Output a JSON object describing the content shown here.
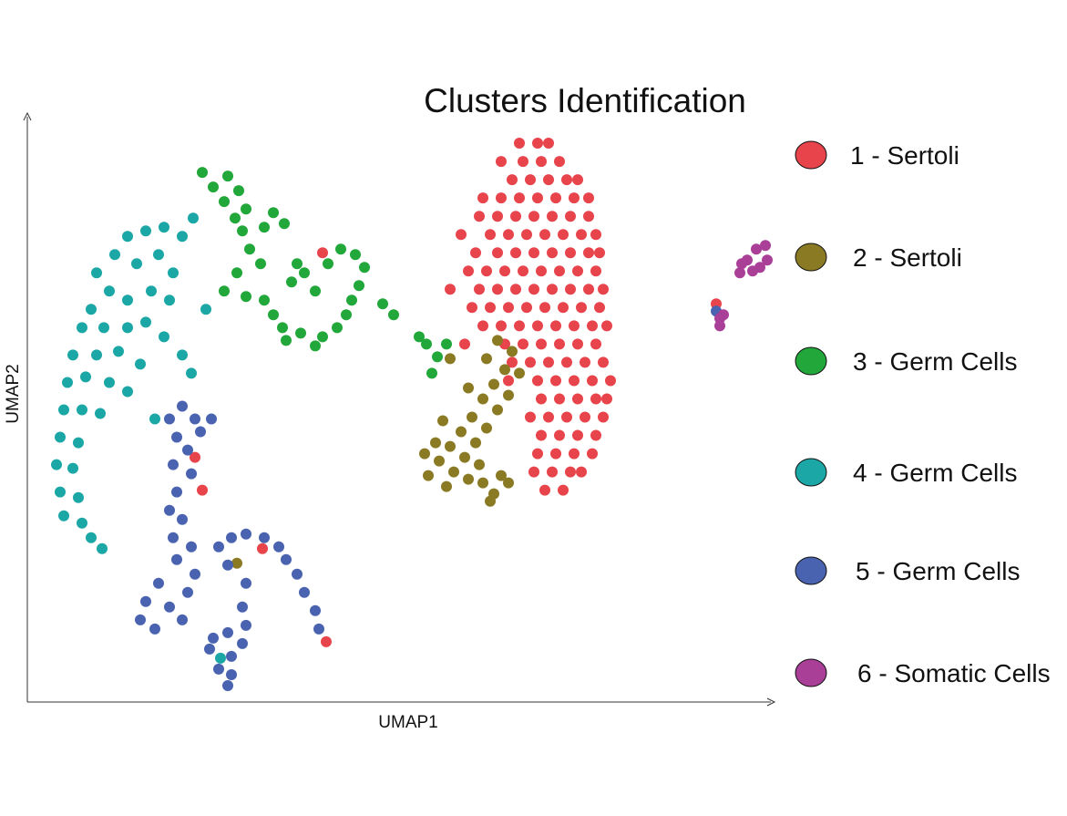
{
  "chart_data": {
    "type": "scatter",
    "title": "Clusters Identification",
    "xlabel": "UMAP1",
    "ylabel": "UMAP2",
    "xlim": [
      -10,
      10.4
    ],
    "ylim": [
      -8,
      8.1
    ],
    "grid": false,
    "legend_placement": "right",
    "series": [
      {
        "name": "1 - Sertoli",
        "color": "#e8444b",
        "points": [
          [
            3.5,
            7.3
          ],
          [
            4.0,
            7.3
          ],
          [
            4.3,
            7.3
          ],
          [
            3.0,
            6.8
          ],
          [
            3.6,
            6.8
          ],
          [
            4.1,
            6.8
          ],
          [
            4.6,
            6.8
          ],
          [
            3.3,
            6.3
          ],
          [
            3.8,
            6.3
          ],
          [
            4.3,
            6.3
          ],
          [
            4.8,
            6.3
          ],
          [
            5.1,
            6.3
          ],
          [
            2.5,
            5.8
          ],
          [
            3.0,
            5.8
          ],
          [
            3.5,
            5.8
          ],
          [
            4.0,
            5.8
          ],
          [
            4.5,
            5.8
          ],
          [
            5.0,
            5.8
          ],
          [
            5.4,
            5.8
          ],
          [
            2.4,
            5.3
          ],
          [
            2.9,
            5.3
          ],
          [
            3.4,
            5.3
          ],
          [
            3.9,
            5.3
          ],
          [
            4.4,
            5.3
          ],
          [
            4.9,
            5.3
          ],
          [
            5.4,
            5.3
          ],
          [
            1.9,
            4.8
          ],
          [
            2.7,
            4.8
          ],
          [
            3.2,
            4.8
          ],
          [
            3.7,
            4.8
          ],
          [
            4.2,
            4.8
          ],
          [
            4.7,
            4.8
          ],
          [
            5.2,
            4.8
          ],
          [
            5.6,
            4.8
          ],
          [
            2.3,
            4.3
          ],
          [
            2.9,
            4.3
          ],
          [
            3.4,
            4.3
          ],
          [
            3.9,
            4.3
          ],
          [
            4.4,
            4.3
          ],
          [
            4.9,
            4.3
          ],
          [
            5.4,
            4.3
          ],
          [
            5.7,
            4.3
          ],
          [
            2.1,
            3.8
          ],
          [
            2.6,
            3.8
          ],
          [
            3.1,
            3.8
          ],
          [
            3.6,
            3.8
          ],
          [
            4.1,
            3.8
          ],
          [
            4.6,
            3.8
          ],
          [
            5.1,
            3.8
          ],
          [
            5.6,
            3.8
          ],
          [
            1.6,
            3.3
          ],
          [
            2.4,
            3.3
          ],
          [
            2.9,
            3.3
          ],
          [
            3.4,
            3.3
          ],
          [
            3.9,
            3.3
          ],
          [
            4.4,
            3.3
          ],
          [
            4.9,
            3.3
          ],
          [
            5.4,
            3.3
          ],
          [
            5.8,
            3.3
          ],
          [
            2.2,
            2.8
          ],
          [
            2.7,
            2.8
          ],
          [
            3.2,
            2.8
          ],
          [
            3.7,
            2.8
          ],
          [
            4.2,
            2.8
          ],
          [
            4.7,
            2.8
          ],
          [
            5.2,
            2.8
          ],
          [
            5.7,
            2.8
          ],
          [
            2.5,
            2.3
          ],
          [
            3.0,
            2.3
          ],
          [
            3.5,
            2.3
          ],
          [
            4.0,
            2.3
          ],
          [
            4.5,
            2.3
          ],
          [
            5.0,
            2.3
          ],
          [
            5.5,
            2.3
          ],
          [
            5.9,
            2.3
          ],
          [
            2.0,
            1.8
          ],
          [
            3.1,
            1.8
          ],
          [
            3.6,
            1.8
          ],
          [
            4.1,
            1.8
          ],
          [
            4.6,
            1.8
          ],
          [
            5.1,
            1.8
          ],
          [
            5.6,
            1.8
          ],
          [
            3.3,
            1.3
          ],
          [
            3.8,
            1.3
          ],
          [
            4.3,
            1.3
          ],
          [
            4.8,
            1.3
          ],
          [
            5.3,
            1.3
          ],
          [
            5.8,
            1.3
          ],
          [
            3.2,
            0.8
          ],
          [
            4.0,
            0.8
          ],
          [
            4.5,
            0.8
          ],
          [
            5.0,
            0.8
          ],
          [
            5.5,
            0.8
          ],
          [
            6.0,
            0.8
          ],
          [
            4.1,
            0.3
          ],
          [
            4.6,
            0.3
          ],
          [
            5.1,
            0.3
          ],
          [
            5.6,
            0.3
          ],
          [
            5.9,
            0.3
          ],
          [
            3.8,
            -0.2
          ],
          [
            4.3,
            -0.2
          ],
          [
            4.8,
            -0.2
          ],
          [
            5.3,
            -0.2
          ],
          [
            5.8,
            -0.2
          ],
          [
            4.1,
            -0.7
          ],
          [
            4.6,
            -0.7
          ],
          [
            5.1,
            -0.7
          ],
          [
            5.6,
            -0.7
          ],
          [
            4.0,
            -1.2
          ],
          [
            4.5,
            -1.2
          ],
          [
            5.0,
            -1.2
          ],
          [
            5.5,
            -1.2
          ],
          [
            3.9,
            -1.7
          ],
          [
            4.4,
            -1.7
          ],
          [
            4.9,
            -1.7
          ],
          [
            5.2,
            -1.7
          ],
          [
            4.2,
            -2.2
          ],
          [
            4.7,
            -2.2
          ],
          [
            8.9,
            2.9
          ],
          [
            -1.9,
            4.3
          ],
          [
            -5.4,
            -1.3
          ],
          [
            -5.2,
            -2.2
          ],
          [
            -3.55,
            -3.8
          ],
          [
            -1.8,
            -6.35
          ]
        ]
      },
      {
        "name": "2 - Sertoli",
        "color": "#8b7a24",
        "points": [
          [
            2.9,
            1.9
          ],
          [
            3.3,
            1.6
          ],
          [
            2.6,
            1.4
          ],
          [
            3.1,
            1.1
          ],
          [
            3.5,
            1.0
          ],
          [
            2.8,
            0.7
          ],
          [
            3.2,
            0.4
          ],
          [
            2.5,
            0.3
          ],
          [
            2.9,
            0.0
          ],
          [
            2.2,
            -0.2
          ],
          [
            2.6,
            -0.5
          ],
          [
            1.9,
            -0.6
          ],
          [
            2.3,
            -0.9
          ],
          [
            1.6,
            -1.0
          ],
          [
            2.0,
            -1.3
          ],
          [
            1.3,
            -1.4
          ],
          [
            1.7,
            -1.7
          ],
          [
            2.1,
            -1.9
          ],
          [
            2.5,
            -2.0
          ],
          [
            2.8,
            -2.3
          ],
          [
            1.5,
            -2.1
          ],
          [
            2.4,
            -1.5
          ],
          [
            1.2,
            -0.9
          ],
          [
            1.0,
            -1.8
          ],
          [
            0.9,
            -1.2
          ],
          [
            3.0,
            -1.8
          ],
          [
            3.2,
            -2.0
          ],
          [
            2.7,
            -2.5
          ],
          [
            1.4,
            -0.3
          ],
          [
            2.1,
            0.6
          ],
          [
            1.6,
            1.4
          ],
          [
            -4.25,
            -4.2
          ]
        ]
      },
      {
        "name": "3 - Germ Cells",
        "color": "#22a73a",
        "points": [
          [
            -5.2,
            6.5
          ],
          [
            -4.9,
            6.1
          ],
          [
            -4.5,
            6.4
          ],
          [
            -4.2,
            6.0
          ],
          [
            -4.6,
            5.7
          ],
          [
            -4.0,
            5.5
          ],
          [
            -3.25,
            5.4
          ],
          [
            -2.95,
            5.1
          ],
          [
            -3.5,
            5.0
          ],
          [
            -4.1,
            4.9
          ],
          [
            -3.9,
            4.4
          ],
          [
            -3.6,
            4.0
          ],
          [
            -4.25,
            3.75
          ],
          [
            -4.6,
            3.25
          ],
          [
            -4.0,
            3.1
          ],
          [
            -3.5,
            3.0
          ],
          [
            -3.25,
            2.6
          ],
          [
            -3.0,
            2.25
          ],
          [
            -2.9,
            1.9
          ],
          [
            -2.5,
            2.1
          ],
          [
            -2.1,
            1.75
          ],
          [
            -1.9,
            2.0
          ],
          [
            -1.5,
            2.25
          ],
          [
            -1.25,
            2.6
          ],
          [
            -1.1,
            3.0
          ],
          [
            -0.9,
            3.4
          ],
          [
            -0.75,
            3.9
          ],
          [
            -1.0,
            4.25
          ],
          [
            -1.4,
            4.4
          ],
          [
            -1.75,
            4.0
          ],
          [
            -2.4,
            3.75
          ],
          [
            -2.75,
            3.5
          ],
          [
            -2.1,
            3.25
          ],
          [
            -2.6,
            4.0
          ],
          [
            -0.25,
            2.9
          ],
          [
            0.05,
            2.6
          ],
          [
            0.75,
            2.0
          ],
          [
            0.95,
            1.8
          ],
          [
            1.25,
            1.45
          ],
          [
            1.1,
            1.0
          ],
          [
            1.5,
            1.8
          ],
          [
            -4.3,
            5.25
          ]
        ]
      },
      {
        "name": "4 - Germ Cells",
        "color": "#1ba7a5",
        "points": [
          [
            -5.45,
            5.25
          ],
          [
            -5.75,
            4.75
          ],
          [
            -6.25,
            5.0
          ],
          [
            -6.75,
            4.9
          ],
          [
            -7.25,
            4.75
          ],
          [
            -7.6,
            4.25
          ],
          [
            -8.1,
            3.75
          ],
          [
            -7.0,
            4.0
          ],
          [
            -6.4,
            4.25
          ],
          [
            -6.0,
            3.75
          ],
          [
            -7.75,
            3.25
          ],
          [
            -7.25,
            3.0
          ],
          [
            -6.6,
            3.25
          ],
          [
            -6.1,
            3.0
          ],
          [
            -8.25,
            2.75
          ],
          [
            -8.5,
            2.25
          ],
          [
            -7.9,
            2.25
          ],
          [
            -7.25,
            2.25
          ],
          [
            -6.75,
            2.4
          ],
          [
            -6.25,
            2.0
          ],
          [
            -5.75,
            1.5
          ],
          [
            -8.75,
            1.5
          ],
          [
            -8.1,
            1.5
          ],
          [
            -7.5,
            1.6
          ],
          [
            -6.9,
            1.25
          ],
          [
            -8.9,
            0.75
          ],
          [
            -8.4,
            0.9
          ],
          [
            -7.75,
            0.75
          ],
          [
            -7.25,
            0.5
          ],
          [
            -9.0,
            0.0
          ],
          [
            -8.5,
            0.0
          ],
          [
            -8.0,
            -0.1
          ],
          [
            -9.1,
            -0.75
          ],
          [
            -8.6,
            -0.9
          ],
          [
            -9.2,
            -1.5
          ],
          [
            -8.75,
            -1.6
          ],
          [
            -9.1,
            -2.25
          ],
          [
            -8.6,
            -2.4
          ],
          [
            -9.0,
            -2.9
          ],
          [
            -8.5,
            -3.1
          ],
          [
            -8.25,
            -3.5
          ],
          [
            -7.95,
            -3.8
          ],
          [
            -5.1,
            2.75
          ],
          [
            -5.5,
            1.0
          ],
          [
            -6.5,
            -0.25
          ],
          [
            -4.7,
            -6.8
          ]
        ]
      },
      {
        "name": "5 - Germ Cells",
        "color": "#4a63b1",
        "points": [
          [
            -5.75,
            0.1
          ],
          [
            -6.1,
            -0.25
          ],
          [
            -5.4,
            -0.25
          ],
          [
            -4.95,
            -0.25
          ],
          [
            -5.9,
            -0.75
          ],
          [
            -5.25,
            -0.6
          ],
          [
            -5.6,
            -1.1
          ],
          [
            -6.0,
            -1.5
          ],
          [
            -5.5,
            -1.75
          ],
          [
            -5.9,
            -2.25
          ],
          [
            -6.1,
            -2.75
          ],
          [
            -5.75,
            -3.0
          ],
          [
            -6.0,
            -3.5
          ],
          [
            -5.5,
            -3.75
          ],
          [
            -5.9,
            -4.1
          ],
          [
            -6.4,
            -4.75
          ],
          [
            -6.75,
            -5.25
          ],
          [
            -6.9,
            -5.75
          ],
          [
            -6.5,
            -6.0
          ],
          [
            -6.1,
            -5.4
          ],
          [
            -5.6,
            -5.0
          ],
          [
            -5.75,
            -5.75
          ],
          [
            -5.4,
            -4.5
          ],
          [
            -4.75,
            -3.75
          ],
          [
            -4.4,
            -3.5
          ],
          [
            -4.0,
            -3.4
          ],
          [
            -3.5,
            -3.5
          ],
          [
            -3.1,
            -3.75
          ],
          [
            -2.9,
            -4.1
          ],
          [
            -2.6,
            -4.5
          ],
          [
            -2.4,
            -5.0
          ],
          [
            -2.1,
            -5.5
          ],
          [
            -2.0,
            -6.0
          ],
          [
            -4.5,
            -4.25
          ],
          [
            -4.0,
            -4.75
          ],
          [
            -4.1,
            -5.4
          ],
          [
            -4.9,
            -6.25
          ],
          [
            -4.5,
            -6.1
          ],
          [
            -4.1,
            -6.4
          ],
          [
            -4.4,
            -6.75
          ],
          [
            -4.75,
            -7.1
          ],
          [
            -4.4,
            -7.25
          ],
          [
            -4.5,
            -7.55
          ],
          [
            -5.0,
            -6.55
          ],
          [
            -4.0,
            -5.9
          ],
          [
            8.9,
            2.7
          ]
        ]
      },
      {
        "name": "6 - Somatic Cells",
        "color": "#a93f97",
        "points": [
          [
            9.55,
            3.75
          ],
          [
            9.75,
            4.1
          ],
          [
            10.0,
            4.4
          ],
          [
            10.25,
            4.5
          ],
          [
            10.3,
            4.1
          ],
          [
            10.1,
            3.9
          ],
          [
            9.9,
            3.8
          ],
          [
            9.6,
            4.0
          ],
          [
            9.0,
            2.5
          ],
          [
            9.1,
            2.6
          ],
          [
            9.0,
            2.3
          ]
        ]
      }
    ]
  }
}
